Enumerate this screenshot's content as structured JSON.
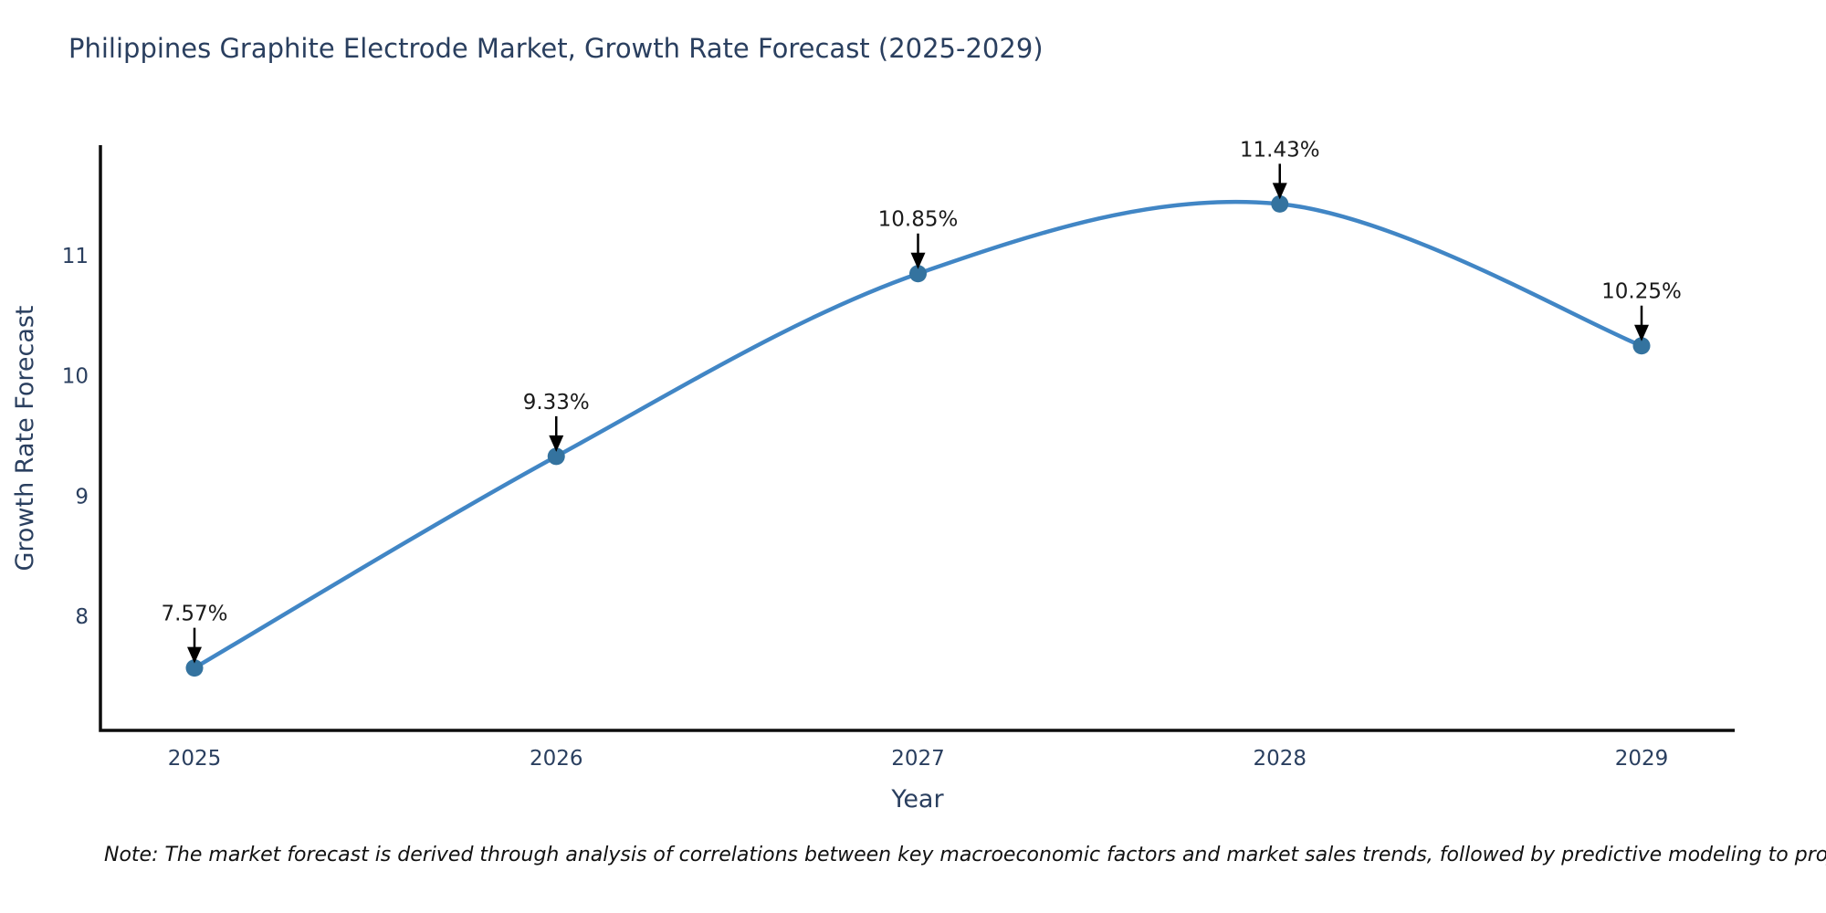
{
  "chart_data": {
    "type": "line",
    "line_shape": "spline",
    "title": "Philippines Graphite Electrode Market, Growth Rate Forecast (2025-2029)",
    "xlabel": "Year",
    "ylabel": "Growth Rate Forecast",
    "x": [
      2025,
      2026,
      2027,
      2028,
      2029
    ],
    "y": [
      7.57,
      9.33,
      10.85,
      11.43,
      10.25
    ],
    "series": [
      {
        "name": "Growth Rate Forecast",
        "values": [
          7.57,
          9.33,
          10.85,
          11.43,
          10.25
        ]
      }
    ],
    "point_labels": [
      "7.57%",
      "9.33%",
      "10.85%",
      "11.43%",
      "10.25%"
    ],
    "xticks": [
      "2025",
      "2026",
      "2027",
      "2028",
      "2029"
    ],
    "yticks": [
      8,
      9,
      10,
      11
    ],
    "ylim": [
      7.05,
      11.9
    ],
    "grid": false,
    "legend_position": "none",
    "annotation_style": "percent labels above points with black down arrows",
    "colors": {
      "line": "#4186c5",
      "marker": "#34739f",
      "axis": "#0d0d0d",
      "arrow": "#000000",
      "title_text": "#2a3f5f",
      "tick_text": "#2a3f5f",
      "annotation_text": "#1a1a1a",
      "background": "#ffffff"
    }
  },
  "footer": {
    "note": "Note: The market forecast is derived through analysis of correlations between key macroeconomic factors and market sales trends, followed by predictive modeling to project future sales"
  }
}
